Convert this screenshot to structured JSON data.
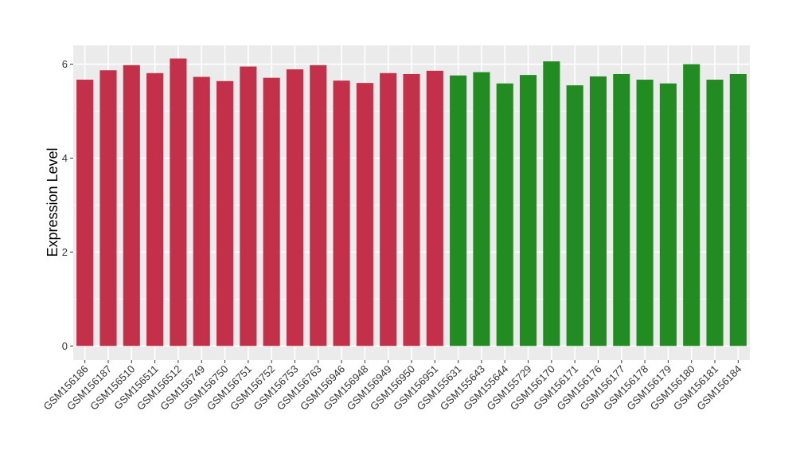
{
  "chart_data": {
    "type": "bar",
    "title": "",
    "xlabel": "",
    "ylabel": "Expression Level",
    "ylim": [
      -0.3,
      6.4
    ],
    "yticks": [
      0,
      2,
      4,
      6
    ],
    "grid": true,
    "legend": "none",
    "colors": {
      "red_group": "#C3304A",
      "green_group": "#228B22",
      "panel": "#EBEBEB",
      "grid": "#FFFFFF"
    },
    "categories": [
      "GSM156186",
      "GSM156187",
      "GSM156510",
      "GSM156511",
      "GSM156512",
      "GSM156749",
      "GSM156750",
      "GSM156751",
      "GSM156752",
      "GSM156753",
      "GSM156763",
      "GSM156946",
      "GSM156948",
      "GSM156949",
      "GSM156950",
      "GSM156951",
      "GSM155631",
      "GSM155643",
      "GSM155644",
      "GSM155729",
      "GSM156170",
      "GSM156171",
      "GSM156176",
      "GSM156177",
      "GSM156178",
      "GSM156179",
      "GSM156180",
      "GSM156181",
      "GSM156184"
    ],
    "values": [
      5.67,
      5.87,
      5.98,
      5.81,
      6.12,
      5.73,
      5.64,
      5.95,
      5.71,
      5.89,
      5.98,
      5.65,
      5.6,
      5.81,
      5.79,
      5.86,
      5.76,
      5.83,
      5.59,
      5.77,
      6.06,
      5.55,
      5.74,
      5.79,
      5.67,
      5.59,
      6.0,
      5.67,
      5.79
    ],
    "groups": [
      "red_group",
      "red_group",
      "red_group",
      "red_group",
      "red_group",
      "red_group",
      "red_group",
      "red_group",
      "red_group",
      "red_group",
      "red_group",
      "red_group",
      "red_group",
      "red_group",
      "red_group",
      "red_group",
      "green_group",
      "green_group",
      "green_group",
      "green_group",
      "green_group",
      "green_group",
      "green_group",
      "green_group",
      "green_group",
      "green_group",
      "green_group",
      "green_group",
      "green_group"
    ]
  }
}
